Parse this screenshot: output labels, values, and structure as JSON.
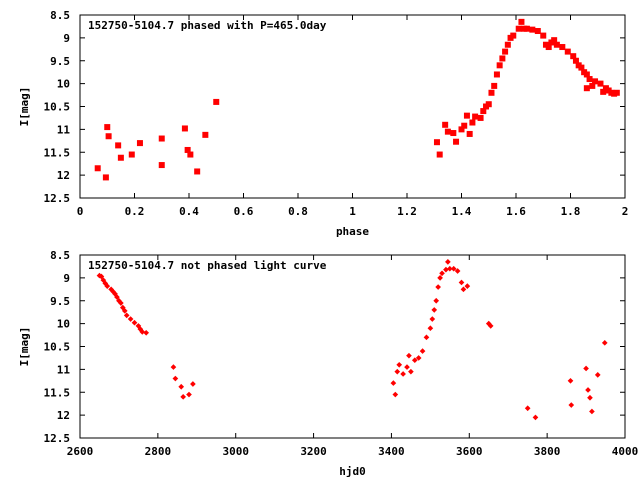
{
  "colors": {
    "points": "#ff0000",
    "axes": "#000000",
    "background": "#ffffff"
  },
  "chart_data": [
    {
      "type": "scatter",
      "title": "152750-5104.7 phased with P=465.0day",
      "xlabel": "phase",
      "ylabel": "I[mag]",
      "xlim": [
        0,
        2
      ],
      "ylim": [
        12.5,
        8.5
      ],
      "y_inverted": true,
      "grid": false,
      "xticks": [
        "0",
        "0.2",
        "0.4",
        "0.6",
        "0.8",
        "1",
        "1.2",
        "1.4",
        "1.6",
        "1.8",
        "2"
      ],
      "yticks": [
        "8.5",
        "9",
        "9.5",
        "10",
        "10.5",
        "11",
        "11.5",
        "12",
        "12.5"
      ],
      "series": [
        {
          "points": [
            [
              0.065,
              11.85
            ],
            [
              0.095,
              12.05
            ],
            [
              0.1,
              10.95
            ],
            [
              0.105,
              11.15
            ],
            [
              0.14,
              11.35
            ],
            [
              0.15,
              11.62
            ],
            [
              0.19,
              11.55
            ],
            [
              0.22,
              11.3
            ],
            [
              0.3,
              11.2
            ],
            [
              0.3,
              11.78
            ],
            [
              0.385,
              10.98
            ],
            [
              0.395,
              11.45
            ],
            [
              0.405,
              11.55
            ],
            [
              0.43,
              11.92
            ],
            [
              0.46,
              11.12
            ],
            [
              0.5,
              10.4
            ],
            [
              1.31,
              11.28
            ],
            [
              1.32,
              11.55
            ],
            [
              1.34,
              10.9
            ],
            [
              1.35,
              11.05
            ],
            [
              1.37,
              11.08
            ],
            [
              1.38,
              11.27
            ],
            [
              1.4,
              11.0
            ],
            [
              1.41,
              10.92
            ],
            [
              1.42,
              10.7
            ],
            [
              1.43,
              11.1
            ],
            [
              1.44,
              10.85
            ],
            [
              1.45,
              10.72
            ],
            [
              1.47,
              10.75
            ],
            [
              1.48,
              10.6
            ],
            [
              1.49,
              10.5
            ],
            [
              1.5,
              10.45
            ],
            [
              1.51,
              10.2
            ],
            [
              1.52,
              10.05
            ],
            [
              1.53,
              9.8
            ],
            [
              1.54,
              9.6
            ],
            [
              1.55,
              9.45
            ],
            [
              1.56,
              9.3
            ],
            [
              1.57,
              9.15
            ],
            [
              1.58,
              9.0
            ],
            [
              1.59,
              8.95
            ],
            [
              1.61,
              8.8
            ],
            [
              1.62,
              8.65
            ],
            [
              1.63,
              8.8
            ],
            [
              1.64,
              8.8
            ],
            [
              1.66,
              8.82
            ],
            [
              1.68,
              8.85
            ],
            [
              1.7,
              8.95
            ],
            [
              1.71,
              9.15
            ],
            [
              1.72,
              9.2
            ],
            [
              1.73,
              9.1
            ],
            [
              1.75,
              9.15
            ],
            [
              1.77,
              9.2
            ],
            [
              1.79,
              9.3
            ],
            [
              1.81,
              9.4
            ],
            [
              1.82,
              9.5
            ],
            [
              1.84,
              9.65
            ],
            [
              1.85,
              9.75
            ],
            [
              1.86,
              9.8
            ],
            [
              1.87,
              9.9
            ],
            [
              1.89,
              9.95
            ],
            [
              1.91,
              10.0
            ],
            [
              1.93,
              10.1
            ],
            [
              1.94,
              10.15
            ],
            [
              1.95,
              10.2
            ],
            [
              1.96,
              10.22
            ],
            [
              1.97,
              10.2
            ],
            [
              1.92,
              10.18
            ],
            [
              1.88,
              10.05
            ],
            [
              1.86,
              10.1
            ],
            [
              1.74,
              9.05
            ],
            [
              1.83,
              9.6
            ]
          ]
        }
      ]
    },
    {
      "type": "scatter",
      "title": "152750-5104.7 not phased light curve",
      "xlabel": "hjd0",
      "ylabel": "I[mag]",
      "xlim": [
        2600,
        4000
      ],
      "ylim": [
        12.5,
        8.5
      ],
      "y_inverted": true,
      "grid": false,
      "xticks": [
        "2600",
        "2800",
        "3000",
        "3200",
        "3400",
        "3600",
        "3800",
        "4000"
      ],
      "yticks": [
        "8.5",
        "9",
        "9.5",
        "10",
        "10.5",
        "11",
        "11.5",
        "12",
        "12.5"
      ],
      "series": [
        {
          "points": [
            [
              2650,
              8.95
            ],
            [
              2655,
              8.97
            ],
            [
              2660,
              9.05
            ],
            [
              2665,
              9.12
            ],
            [
              2670,
              9.18
            ],
            [
              2680,
              9.25
            ],
            [
              2685,
              9.3
            ],
            [
              2690,
              9.35
            ],
            [
              2695,
              9.42
            ],
            [
              2700,
              9.5
            ],
            [
              2705,
              9.55
            ],
            [
              2710,
              9.65
            ],
            [
              2715,
              9.72
            ],
            [
              2720,
              9.82
            ],
            [
              2730,
              9.9
            ],
            [
              2740,
              9.98
            ],
            [
              2750,
              10.05
            ],
            [
              2755,
              10.12
            ],
            [
              2760,
              10.18
            ],
            [
              2770,
              10.2
            ],
            [
              2840,
              10.95
            ],
            [
              2845,
              11.2
            ],
            [
              2860,
              11.38
            ],
            [
              2865,
              11.6
            ],
            [
              2880,
              11.55
            ],
            [
              2890,
              11.32
            ],
            [
              3405,
              11.3
            ],
            [
              3410,
              11.55
            ],
            [
              3415,
              11.05
            ],
            [
              3420,
              10.9
            ],
            [
              3430,
              11.1
            ],
            [
              3440,
              10.95
            ],
            [
              3445,
              10.7
            ],
            [
              3450,
              11.05
            ],
            [
              3460,
              10.8
            ],
            [
              3470,
              10.75
            ],
            [
              3480,
              10.6
            ],
            [
              3490,
              10.3
            ],
            [
              3500,
              10.1
            ],
            [
              3505,
              9.9
            ],
            [
              3510,
              9.7
            ],
            [
              3515,
              9.5
            ],
            [
              3520,
              9.2
            ],
            [
              3525,
              9.0
            ],
            [
              3530,
              8.9
            ],
            [
              3540,
              8.82
            ],
            [
              3545,
              8.65
            ],
            [
              3550,
              8.8
            ],
            [
              3560,
              8.8
            ],
            [
              3570,
              8.85
            ],
            [
              3580,
              9.1
            ],
            [
              3585,
              9.25
            ],
            [
              3595,
              9.18
            ],
            [
              3650,
              10.0
            ],
            [
              3655,
              10.05
            ],
            [
              3750,
              11.85
            ],
            [
              3770,
              12.05
            ],
            [
              3860,
              11.25
            ],
            [
              3862,
              11.78
            ],
            [
              3900,
              10.98
            ],
            [
              3905,
              11.45
            ],
            [
              3910,
              11.62
            ],
            [
              3915,
              11.92
            ],
            [
              3930,
              11.12
            ],
            [
              3948,
              10.42
            ]
          ]
        }
      ]
    }
  ]
}
